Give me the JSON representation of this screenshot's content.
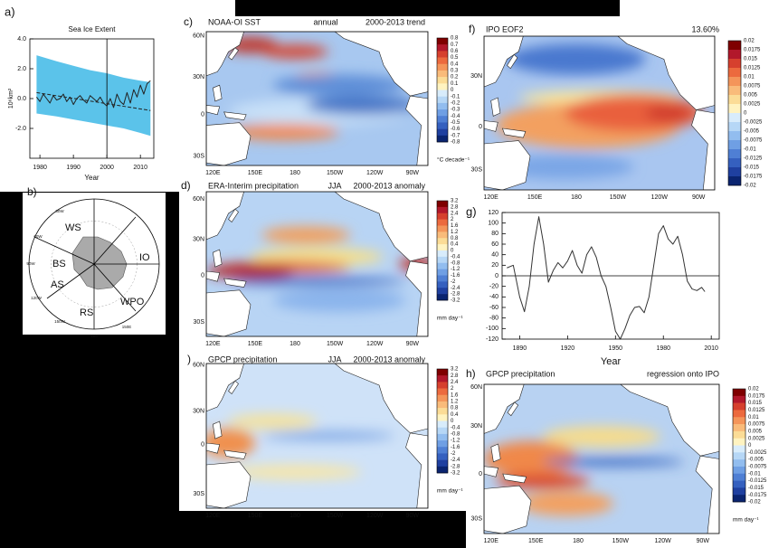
{
  "chart_data": [
    {
      "type": "line",
      "label": "a)",
      "title": "Sea Ice Extent",
      "x_label": "Year",
      "y_label": "10⁶km²",
      "x": [
        1979,
        1980,
        1981,
        1982,
        1983,
        1984,
        1985,
        1986,
        1987,
        1988,
        1989,
        1990,
        1991,
        1992,
        1993,
        1994,
        1995,
        1996,
        1997,
        1998,
        1999,
        2000,
        2001,
        2002,
        2003,
        2004,
        2005,
        2006,
        2007,
        2008,
        2009,
        2010,
        2011,
        2012,
        2013
      ],
      "series": [
        {
          "color": "#222222",
          "values": [
            0.1,
            -0.2,
            0.3,
            0.0,
            -0.3,
            0.2,
            -0.1,
            0.0,
            0.3,
            -0.2,
            0.1,
            -0.4,
            0.0,
            0.2,
            -0.1,
            -0.3,
            0.2,
            0.0,
            -0.2,
            0.1,
            -0.3,
            -0.5,
            0.0,
            -0.6,
            0.3,
            -0.2,
            -0.4,
            0.4,
            -0.3,
            0.6,
            0.1,
            0.9,
            0.3,
            1.0,
            1.2
          ]
        }
      ],
      "trend": {
        "color": "#222222",
        "x": [
          1979,
          2013
        ],
        "values": [
          0.4,
          -0.8
        ]
      },
      "band": {
        "color": "#5bc3ea",
        "x": [
          1979,
          1985,
          1990,
          1995,
          2000,
          2005,
          2010,
          2013
        ],
        "upper": [
          2.9,
          2.5,
          2.2,
          1.9,
          1.7,
          1.4,
          1.2,
          1.1
        ],
        "lower": [
          -1.0,
          -1.2,
          -1.4,
          -1.6,
          -1.8,
          -2.0,
          -2.3,
          -2.5
        ]
      },
      "vline": 2000,
      "xlim": [
        1977,
        2014
      ],
      "xticks": [
        1980,
        1990,
        2000,
        2010
      ],
      "ylim": [
        -4,
        4
      ],
      "yticks": [
        {
          "value": 4,
          "label": "4.0"
        },
        {
          "value": 2,
          "label": "2.0"
        },
        {
          "value": 0,
          "label": "0.0"
        },
        {
          "value": -2,
          "label": "-2.0"
        }
      ]
    },
    {
      "type": "line",
      "label": "g)",
      "x_label": "Year",
      "x": [
        1882,
        1886,
        1890,
        1893,
        1896,
        1899,
        1902,
        1905,
        1908,
        1911,
        1914,
        1917,
        1920,
        1923,
        1926,
        1929,
        1932,
        1935,
        1938,
        1941,
        1944,
        1947,
        1950,
        1953,
        1956,
        1959,
        1962,
        1965,
        1968,
        1971,
        1974,
        1977,
        1980,
        1983,
        1986,
        1989,
        1992,
        1995,
        1998,
        2001,
        2004,
        2006
      ],
      "series": [
        {
          "color": "#333333",
          "values": [
            15,
            20,
            -40,
            -68,
            -20,
            60,
            112,
            60,
            -12,
            10,
            25,
            15,
            28,
            48,
            20,
            5,
            40,
            55,
            35,
            0,
            -20,
            -60,
            -105,
            -120,
            -100,
            -75,
            -60,
            -58,
            -70,
            -40,
            20,
            80,
            95,
            70,
            60,
            75,
            40,
            -10,
            -25,
            -28,
            -22,
            -30
          ]
        }
      ],
      "xlim": [
        1879,
        2015
      ],
      "xticks": [
        1890,
        1920,
        1950,
        1980,
        2010
      ],
      "ylim": [
        -120,
        120
      ],
      "yticks": [
        120,
        100,
        80,
        60,
        40,
        20,
        0,
        -20,
        -40,
        -60,
        -80,
        -100,
        -120
      ]
    }
  ],
  "maps": [
    {
      "label": "c)",
      "title": "NOAA-OI SST",
      "season": "annual",
      "period": "2000-2013 trend",
      "lat_labels": [
        "60N",
        "30N",
        "0",
        "30S"
      ],
      "lon_labels": [
        "120E",
        "150E",
        "180",
        "150W",
        "120W",
        "90W"
      ],
      "colorbar": {
        "ticks": [
          0.8,
          0.7,
          0.6,
          0.5,
          0.4,
          0.3,
          0.2,
          0.1,
          0,
          -0.1,
          -0.2,
          -0.3,
          -0.4,
          -0.5,
          -0.6,
          -0.7,
          -0.8
        ],
        "unit": "°C decade⁻¹"
      }
    },
    {
      "label": "d)",
      "title": "ERA-Interim precipitation",
      "season": "JJA",
      "period": "2000-2013 anomaly",
      "lat_labels": [
        "60N",
        "30N",
        "0",
        "30S"
      ],
      "lon_labels": [
        "120E",
        "150E",
        "180",
        "150W",
        "120W",
        "90W"
      ],
      "colorbar": {
        "ticks": [
          3.2,
          2.8,
          2.4,
          2,
          1.6,
          1.2,
          0.8,
          0.4,
          0,
          -0.4,
          -0.8,
          -1.2,
          -1.6,
          -2,
          -2.4,
          -2.8,
          -3.2
        ],
        "unit": "mm day⁻¹"
      }
    },
    {
      "label": ")",
      "title": "GPCP precipitation",
      "season": "JJA",
      "period": "2000-2013 anomaly",
      "lat_labels": [
        "60N",
        "30N",
        "0",
        "30S"
      ],
      "lon_labels": [
        "120E",
        "150E",
        "180",
        "150W",
        "120W",
        "90W"
      ],
      "colorbar": {
        "ticks": [
          3.2,
          2.8,
          2.4,
          2,
          1.6,
          1.2,
          0.8,
          0.4,
          0,
          -0.4,
          -0.8,
          -1.2,
          -1.6,
          -2,
          -2.4,
          -2.8,
          -3.2
        ],
        "unit": "mm day⁻¹"
      }
    },
    {
      "label": "f)",
      "title": "IPO EOF2",
      "period": "13.60%",
      "lat_labels": [
        "30N",
        "0",
        "30S"
      ],
      "lon_labels": [
        "120E",
        "150E",
        "180",
        "150W",
        "120W",
        "90W"
      ],
      "colorbar": {
        "ticks": [
          0.02,
          0.0175,
          0.015,
          0.0125,
          0.01,
          0.0075,
          0.005,
          0.0025,
          0,
          -0.0025,
          -0.005,
          -0.0075,
          -0.01,
          -0.0125,
          -0.015,
          -0.0175,
          -0.02
        ]
      }
    },
    {
      "label": "h)",
      "title": "GPCP precipitation",
      "period": "regression onto IPO",
      "lat_labels": [
        "60N",
        "30N",
        "0",
        "30S"
      ],
      "lon_labels": [
        "120E",
        "150E",
        "180",
        "150W",
        "120W",
        "90W"
      ],
      "colorbar": {
        "ticks": [
          0.02,
          0.0175,
          0.015,
          0.0125,
          0.01,
          0.0075,
          0.005,
          0.0025,
          0,
          -0.0025,
          -0.005,
          -0.0075,
          -0.01,
          -0.0125,
          -0.015,
          -0.0175,
          -0.02
        ],
        "unit": "mm day⁻¹"
      }
    }
  ],
  "antarctic": {
    "label": "b)",
    "regions": [
      "WS",
      "BS",
      "AS",
      "RS",
      "WPO",
      "IO"
    ],
    "meridians": [
      "30W",
      "60W",
      "90W",
      "120W",
      "150W",
      "180",
      "150E"
    ]
  }
}
